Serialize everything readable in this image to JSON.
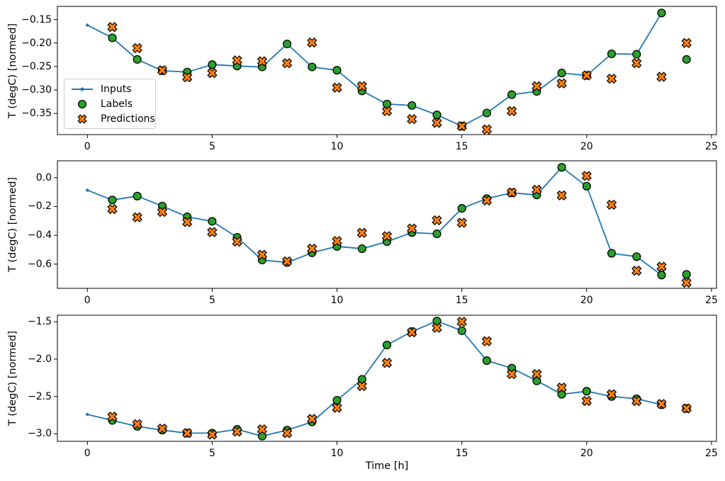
{
  "figure": {
    "xlabel": "Time [h]",
    "ylabel": "T (degC) [normed]",
    "background": "#ffffff",
    "grid": false,
    "colors": {
      "inputs": "#1f77b4",
      "labels": "#2ca02c",
      "predictions": "#ff7f0e",
      "marker_edge": "#000000",
      "frame": "#000000"
    },
    "legend": {
      "location": "upper-left-inside-first-subplot",
      "entries": [
        {
          "label": "Inputs"
        },
        {
          "label": "Labels"
        },
        {
          "label": "Predictions"
        }
      ]
    }
  },
  "chart_data": [
    {
      "type": "line",
      "title": "",
      "xlabel": "",
      "ylabel": "T (degC) [normed]",
      "xlim": [
        -1.2,
        25.2
      ],
      "ylim": [
        -0.395,
        -0.122
      ],
      "x_ticks": [
        0,
        5,
        10,
        15,
        20,
        25
      ],
      "x_tick_labels": [
        "0",
        "5",
        "10",
        "15",
        "20",
        "25"
      ],
      "y_ticks": [
        -0.15,
        -0.2,
        -0.25,
        -0.3,
        -0.35
      ],
      "y_tick_labels": [
        "−0.15",
        "−0.20",
        "−0.25",
        "−0.30",
        "−0.35"
      ],
      "x_inputs": [
        0,
        1,
        2,
        3,
        4,
        5,
        6,
        7,
        8,
        9,
        10,
        11,
        12,
        13,
        14,
        15,
        16,
        17,
        18,
        19,
        20,
        21,
        22,
        23
      ],
      "x_outputs": [
        1,
        2,
        3,
        4,
        5,
        6,
        7,
        8,
        9,
        10,
        11,
        12,
        13,
        14,
        15,
        16,
        17,
        18,
        19,
        20,
        21,
        22,
        23,
        24
      ],
      "series": {
        "inputs": [
          -0.162,
          -0.189,
          -0.235,
          -0.259,
          -0.262,
          -0.246,
          -0.249,
          -0.251,
          -0.202,
          -0.251,
          -0.258,
          -0.302,
          -0.33,
          -0.333,
          -0.353,
          -0.377,
          -0.349,
          -0.31,
          -0.303,
          -0.264,
          -0.269,
          -0.223,
          -0.224,
          -0.136
        ],
        "labels": [
          -0.189,
          -0.235,
          -0.259,
          -0.262,
          -0.246,
          -0.249,
          -0.251,
          -0.202,
          -0.251,
          -0.258,
          -0.302,
          -0.33,
          -0.333,
          -0.353,
          -0.377,
          -0.349,
          -0.31,
          -0.303,
          -0.264,
          -0.269,
          -0.223,
          -0.224,
          -0.136,
          -0.235
        ],
        "predictions": [
          -0.166,
          -0.211,
          -0.258,
          -0.273,
          -0.264,
          -0.237,
          -0.239,
          -0.243,
          -0.199,
          -0.295,
          -0.292,
          -0.345,
          -0.362,
          -0.37,
          -0.377,
          -0.384,
          -0.345,
          -0.292,
          -0.286,
          -0.269,
          -0.276,
          -0.243,
          -0.272,
          -0.2
        ]
      }
    },
    {
      "type": "line",
      "title": "",
      "xlabel": "",
      "ylabel": "T (degC) [normed]",
      "xlim": [
        -1.2,
        25.2
      ],
      "ylim": [
        -0.768,
        0.117
      ],
      "x_ticks": [
        0,
        5,
        10,
        15,
        20,
        25
      ],
      "x_tick_labels": [
        "0",
        "5",
        "10",
        "15",
        "20",
        "25"
      ],
      "y_ticks": [
        0.0,
        -0.2,
        -0.4,
        -0.6
      ],
      "y_tick_labels": [
        "0.0",
        "−0.2",
        "−0.4",
        "−0.6"
      ],
      "x_inputs": [
        0,
        1,
        2,
        3,
        4,
        5,
        6,
        7,
        8,
        9,
        10,
        11,
        12,
        13,
        14,
        15,
        16,
        17,
        18,
        19,
        20,
        21,
        22,
        23
      ],
      "x_outputs": [
        1,
        2,
        3,
        4,
        5,
        6,
        7,
        8,
        9,
        10,
        11,
        12,
        13,
        14,
        15,
        16,
        17,
        18,
        19,
        20,
        21,
        22,
        23,
        24
      ],
      "series": {
        "inputs": [
          -0.087,
          -0.155,
          -0.128,
          -0.197,
          -0.272,
          -0.303,
          -0.414,
          -0.572,
          -0.589,
          -0.521,
          -0.477,
          -0.493,
          -0.444,
          -0.381,
          -0.39,
          -0.213,
          -0.145,
          -0.105,
          -0.12,
          0.072,
          -0.059,
          -0.525,
          -0.548,
          -0.676
        ],
        "labels": [
          -0.155,
          -0.128,
          -0.197,
          -0.272,
          -0.303,
          -0.414,
          -0.572,
          -0.589,
          -0.521,
          -0.477,
          -0.493,
          -0.444,
          -0.381,
          -0.39,
          -0.213,
          -0.145,
          -0.105,
          -0.12,
          0.072,
          -0.059,
          -0.525,
          -0.548,
          -0.676,
          -0.671
        ],
        "predictions": [
          -0.218,
          -0.275,
          -0.238,
          -0.308,
          -0.378,
          -0.444,
          -0.535,
          -0.581,
          -0.493,
          -0.44,
          -0.383,
          -0.406,
          -0.353,
          -0.296,
          -0.313,
          -0.158,
          -0.103,
          -0.084,
          -0.123,
          0.012,
          -0.188,
          -0.646,
          -0.618,
          -0.729
        ]
      }
    },
    {
      "type": "line",
      "title": "",
      "xlabel": "Time [h]",
      "ylabel": "T (degC) [normed]",
      "xlim": [
        -1.2,
        25.2
      ],
      "ylim": [
        -3.1,
        -1.412
      ],
      "x_ticks": [
        0,
        5,
        10,
        15,
        20,
        25
      ],
      "x_tick_labels": [
        "0",
        "5",
        "10",
        "15",
        "20",
        "25"
      ],
      "y_ticks": [
        -1.5,
        -2.0,
        -2.5,
        -3.0
      ],
      "y_tick_labels": [
        "−1.5",
        "−2.0",
        "−2.5",
        "−3.0"
      ],
      "x_inputs": [
        0,
        1,
        2,
        3,
        4,
        5,
        6,
        7,
        8,
        9,
        10,
        11,
        12,
        13,
        14,
        15,
        16,
        17,
        18,
        19,
        20,
        21,
        22,
        23
      ],
      "x_outputs": [
        1,
        2,
        3,
        4,
        5,
        6,
        7,
        8,
        9,
        10,
        11,
        12,
        13,
        14,
        15,
        16,
        17,
        18,
        19,
        20,
        21,
        22,
        23,
        24
      ],
      "series": {
        "inputs": [
          -2.74,
          -2.82,
          -2.9,
          -2.95,
          -2.99,
          -2.99,
          -2.94,
          -3.03,
          -2.95,
          -2.84,
          -2.55,
          -2.27,
          -1.81,
          -1.63,
          -1.49,
          -1.62,
          -2.02,
          -2.12,
          -2.29,
          -2.47,
          -2.43,
          -2.5,
          -2.53,
          -2.61
        ],
        "labels": [
          -2.82,
          -2.9,
          -2.95,
          -2.99,
          -2.99,
          -2.94,
          -3.03,
          -2.95,
          -2.84,
          -2.55,
          -2.27,
          -1.81,
          -1.63,
          -1.49,
          -1.62,
          -2.02,
          -2.12,
          -2.29,
          -2.47,
          -2.43,
          -2.5,
          -2.53,
          -2.61,
          -2.66
        ],
        "predictions": [
          -2.77,
          -2.87,
          -2.93,
          -2.99,
          -3.01,
          -2.97,
          -2.94,
          -2.99,
          -2.8,
          -2.65,
          -2.36,
          -2.05,
          -1.64,
          -1.58,
          -1.5,
          -1.76,
          -2.2,
          -2.2,
          -2.38,
          -2.56,
          -2.47,
          -2.56,
          -2.6,
          -2.66
        ]
      }
    }
  ]
}
